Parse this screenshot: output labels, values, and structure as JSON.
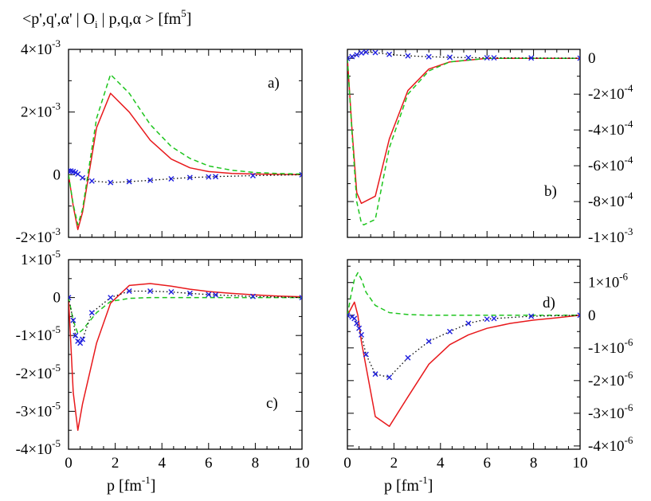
{
  "figure": {
    "ylabel": "<p',q',α' | O",
    "ylabel_sub": "i",
    "ylabel_tail": " | p,q,α > [fm",
    "ylabel_sup": "5",
    "ylabel_end": "]",
    "xlabel_main": "p [fm",
    "xlabel_sup": "-1",
    "xlabel_end": "]"
  },
  "colors": {
    "red": "#e8191c",
    "green": "#1ec51e",
    "blue": "#1f1fe0",
    "dotted": "#000000"
  },
  "chart_data": [
    {
      "type": "line",
      "panel": "a)",
      "xlim": [
        0,
        10
      ],
      "ylim": [
        -0.002,
        0.004
      ],
      "yaxis_side": "left",
      "ticks_y": [
        {
          "v": 0.004,
          "m": "4×10",
          "e": "-3"
        },
        {
          "v": 0.002,
          "m": "2×10",
          "e": "-3"
        },
        {
          "v": 0,
          "m": "0",
          "e": ""
        },
        {
          "v": -0.002,
          "m": "-2×10",
          "e": "-3"
        }
      ],
      "series": [
        {
          "name": "red",
          "style": "solid",
          "x": [
            0,
            0.2,
            0.4,
            0.6,
            1.2,
            1.8,
            2.6,
            3.5,
            4.4,
            5.2,
            6,
            7,
            8,
            9,
            10
          ],
          "y": [
            0,
            -0.001,
            -0.00175,
            -0.0012,
            0.0015,
            0.0026,
            0.002,
            0.0011,
            0.0005,
            0.00022,
            0.0001,
            4e-05,
            2e-05,
            1e-05,
            0
          ]
        },
        {
          "name": "green",
          "style": "dashed",
          "x": [
            0,
            0.2,
            0.4,
            0.6,
            1.2,
            1.8,
            2.6,
            3.5,
            4.4,
            5.2,
            6,
            7,
            8,
            9,
            10
          ],
          "y": [
            0,
            -0.00095,
            -0.0016,
            -0.0011,
            0.0018,
            0.0032,
            0.0026,
            0.0016,
            0.0009,
            0.00052,
            0.00028,
            0.00014,
            7e-05,
            4e-05,
            2e-05
          ]
        },
        {
          "name": "blue",
          "style": "dotted",
          "marker": "x",
          "x": [
            0,
            0.1,
            0.2,
            0.3,
            0.4,
            0.6,
            1,
            1.8,
            2.6,
            3.5,
            4.4,
            5.2,
            6,
            6.3,
            7.9,
            10
          ],
          "y": [
            0.00012,
            0.00012,
            0.0001,
            7e-05,
            2e-05,
            -0.0001,
            -0.0002,
            -0.00025,
            -0.00022,
            -0.00018,
            -0.00013,
            -9e-05,
            -7e-05,
            -6e-05,
            -3e-05,
            0
          ]
        }
      ]
    },
    {
      "type": "line",
      "panel": "b)",
      "xlim": [
        0,
        10
      ],
      "ylim": [
        -0.001,
        5e-05
      ],
      "yaxis_side": "right",
      "ticks_y": [
        {
          "v": 0,
          "m": "0",
          "e": ""
        },
        {
          "v": -0.0002,
          "m": "-2×10",
          "e": "-4"
        },
        {
          "v": -0.0004,
          "m": "-4×10",
          "e": "-4"
        },
        {
          "v": -0.0006,
          "m": "-6×10",
          "e": "-4"
        },
        {
          "v": -0.0008,
          "m": "-8×10",
          "e": "-4"
        },
        {
          "v": -0.001,
          "m": "-1×10",
          "e": "-3"
        }
      ],
      "series": [
        {
          "name": "red",
          "style": "solid",
          "x": [
            0,
            0.2,
            0.4,
            0.6,
            1.2,
            1.8,
            2.6,
            3.5,
            4.4,
            5.2,
            6,
            7,
            8,
            9,
            10
          ],
          "y": [
            0,
            -0.0004,
            -0.00075,
            -0.00081,
            -0.00077,
            -0.00045,
            -0.00018,
            -6e-05,
            -2e-05,
            -1e-05,
            0,
            0,
            0,
            0,
            0
          ]
        },
        {
          "name": "green",
          "style": "dashed",
          "x": [
            0,
            0.2,
            0.4,
            0.6,
            0.7,
            1.2,
            1.8,
            2.6,
            3.5,
            4.4,
            5.2,
            6,
            7,
            8,
            9,
            10
          ],
          "y": [
            0,
            -0.00042,
            -0.0008,
            -0.00092,
            -0.00093,
            -0.0009,
            -0.0005,
            -0.0002,
            -7e-05,
            -2e-05,
            -1e-05,
            0,
            0,
            0,
            0,
            0
          ]
        },
        {
          "name": "blue",
          "style": "dotted",
          "marker": "x",
          "x": [
            0,
            0.2,
            0.4,
            0.6,
            0.8,
            1.2,
            1.8,
            2.6,
            3.5,
            4.4,
            5.2,
            6,
            6.3,
            7.9,
            10
          ],
          "y": [
            0,
            1e-05,
            2e-05,
            3e-05,
            3.5e-05,
            3.2e-05,
            2.2e-05,
            1.4e-05,
            9e-06,
            6e-06,
            4e-06,
            3e-06,
            3e-06,
            2e-06,
            1e-06
          ]
        }
      ]
    },
    {
      "type": "line",
      "panel": "c)",
      "xlim": [
        0,
        10
      ],
      "ylim": [
        -4e-05,
        1e-05
      ],
      "yaxis_side": "left",
      "ticks_y": [
        {
          "v": 1e-05,
          "m": "1×10",
          "e": "-5"
        },
        {
          "v": 0,
          "m": "0",
          "e": ""
        },
        {
          "v": -1e-05,
          "m": "-1×10",
          "e": "-5"
        },
        {
          "v": -2e-05,
          "m": "-2×10",
          "e": "-5"
        },
        {
          "v": -3e-05,
          "m": "-3×10",
          "e": "-5"
        },
        {
          "v": -4e-05,
          "m": "-4×10",
          "e": "-5"
        }
      ],
      "series": [
        {
          "name": "red",
          "style": "solid",
          "x": [
            0,
            0.2,
            0.4,
            0.6,
            1.2,
            1.8,
            2.6,
            3.5,
            4.4,
            5.2,
            6,
            7,
            8,
            9,
            10
          ],
          "y": [
            0,
            -2.5e-05,
            -3.5e-05,
            -2.8e-05,
            -1.2e-05,
            -1.5e-06,
            3.2e-06,
            3.7e-06,
            3e-06,
            2.2e-06,
            1.6e-06,
            1.1e-06,
            7e-07,
            4e-07,
            2e-07
          ]
        },
        {
          "name": "green",
          "style": "dashed",
          "x": [
            0,
            0.2,
            0.4,
            0.6,
            1.2,
            1.8,
            2.6,
            3.5,
            4.4,
            5.2,
            6,
            7,
            8,
            9,
            10
          ],
          "y": [
            0,
            -6e-06,
            -9.5e-06,
            -8.5e-06,
            -4e-06,
            -1e-06,
            -2e-07,
            0,
            0,
            0,
            0,
            0,
            0,
            0,
            0
          ]
        },
        {
          "name": "blue",
          "style": "dotted",
          "marker": "x",
          "x": [
            0,
            0.2,
            0.3,
            0.4,
            0.5,
            0.6,
            1,
            1.8,
            2.6,
            3.5,
            4.4,
            5.2,
            6,
            6.3,
            7.9,
            10
          ],
          "y": [
            0,
            -6e-06,
            -1e-05,
            -1.15e-05,
            -1.2e-05,
            -1.1e-05,
            -4e-06,
            0,
            1.7e-06,
            1.7e-06,
            1.5e-06,
            1.1e-06,
            8e-07,
            7e-07,
            3e-07,
            0
          ]
        }
      ]
    },
    {
      "type": "line",
      "panel": "d)",
      "xlim": [
        0,
        10
      ],
      "ylim": [
        -4.1e-06,
        1.7e-06
      ],
      "yaxis_side": "right",
      "ticks_y": [
        {
          "v": 1e-06,
          "m": "1×10",
          "e": "-6"
        },
        {
          "v": 0,
          "m": "0",
          "e": ""
        },
        {
          "v": -1e-06,
          "m": "-1×10",
          "e": "-6"
        },
        {
          "v": -2e-06,
          "m": "-2×10",
          "e": "-6"
        },
        {
          "v": -3e-06,
          "m": "-3×10",
          "e": "-6"
        },
        {
          "v": -4e-06,
          "m": "-4×10",
          "e": "-6"
        }
      ],
      "series": [
        {
          "name": "red",
          "style": "solid",
          "x": [
            0,
            0.15,
            0.3,
            0.45,
            0.6,
            1.2,
            1.8,
            2.6,
            3.5,
            4.4,
            5.2,
            6,
            7,
            8,
            9,
            10
          ],
          "y": [
            0,
            2e-07,
            4e-07,
            0,
            -8e-07,
            -3.1e-06,
            -3.4e-06,
            -2.5e-06,
            -1.5e-06,
            -9e-07,
            -6e-07,
            -4e-07,
            -2.5e-07,
            -1.5e-07,
            -8e-08,
            0
          ]
        },
        {
          "name": "green",
          "style": "dashed",
          "x": [
            0,
            0.15,
            0.3,
            0.45,
            0.6,
            0.8,
            1.2,
            1.8,
            2.6,
            3.5,
            4.4,
            5.2,
            6,
            7,
            8,
            9,
            10
          ],
          "y": [
            0,
            6e-07,
            1.1e-06,
            1.3e-06,
            1.1e-06,
            7e-07,
            3e-07,
            8e-08,
            2e-08,
            0,
            0,
            0,
            0,
            0,
            0,
            0,
            0
          ]
        },
        {
          "name": "blue",
          "style": "dotted",
          "marker": "x",
          "x": [
            0,
            0.2,
            0.3,
            0.4,
            0.5,
            0.6,
            0.8,
            1.2,
            1.8,
            2.6,
            3.5,
            4.4,
            5.2,
            6,
            6.3,
            7.9,
            10
          ],
          "y": [
            0,
            -5e-08,
            -1e-07,
            -2.5e-07,
            -4e-07,
            -6e-07,
            -1.2e-06,
            -1.8e-06,
            -1.9e-06,
            -1.3e-06,
            -8e-07,
            -5e-07,
            -2.5e-07,
            -1.2e-07,
            -1e-07,
            -3e-08,
            0
          ]
        }
      ]
    }
  ],
  "ticks_x": [
    "0",
    "2",
    "4",
    "6",
    "8",
    "10"
  ]
}
